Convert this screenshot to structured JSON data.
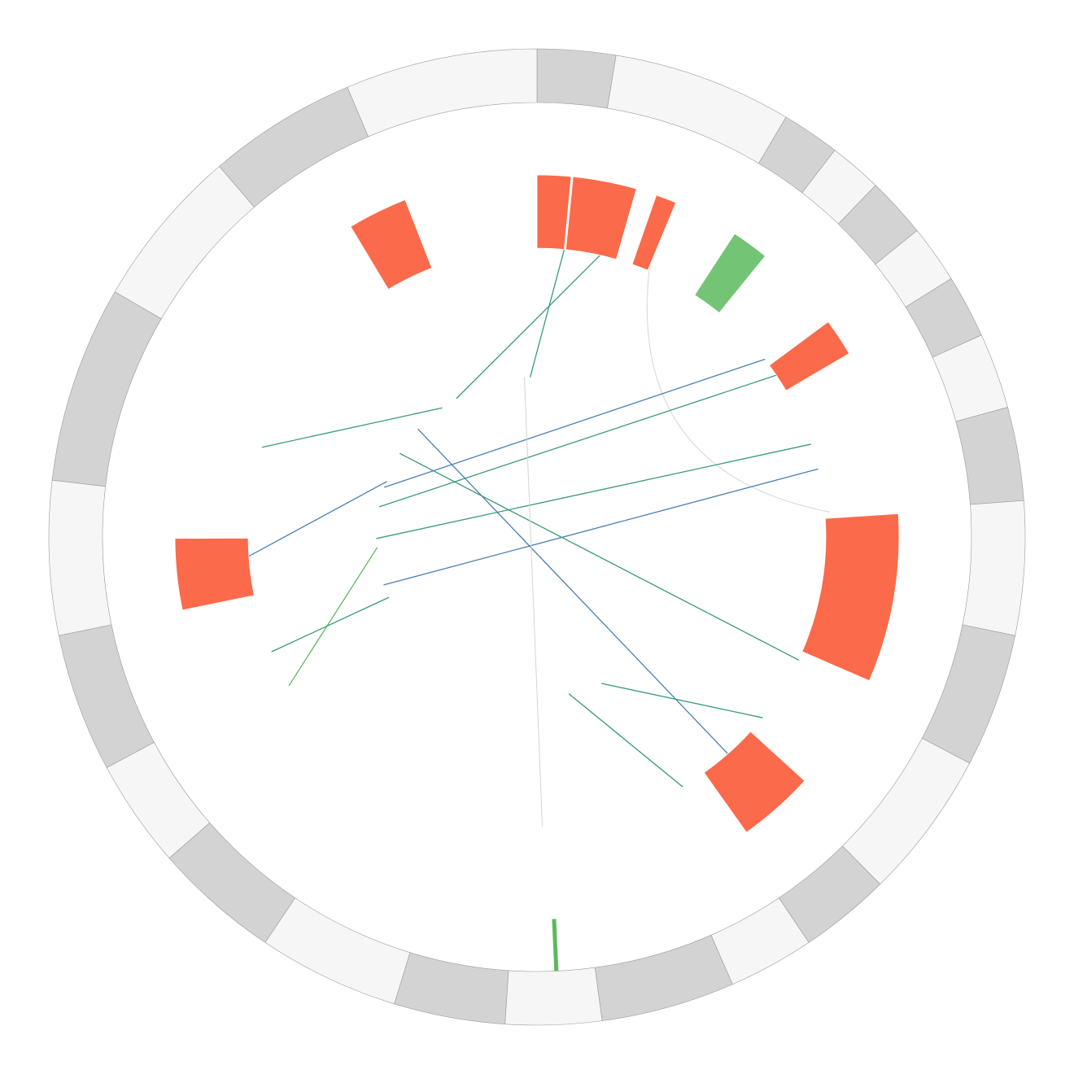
{
  "colors": {
    "segment_dark": "#d3d3d3",
    "segment_light": "#f6f6f6",
    "segment_stroke": "#9a9a9a",
    "highlight_red": "#fb6a4a",
    "highlight_green": "#74c476",
    "link_blue": "#4a7fb5",
    "link_teal": "#3a9a7a",
    "link_green": "#5bb95f",
    "link_light": "#cfd8cf",
    "arc_gray": "#dcdcdc"
  },
  "ideogram": {
    "segments": [
      {
        "start": 0,
        "end": 31,
        "tone": "dark"
      },
      {
        "start": 31,
        "end": 102,
        "tone": "light"
      },
      {
        "start": 102,
        "end": 125,
        "tone": "dark"
      },
      {
        "start": 125,
        "end": 146,
        "tone": "light"
      },
      {
        "start": 146,
        "end": 170,
        "tone": "dark"
      },
      {
        "start": 170,
        "end": 193,
        "tone": "light"
      },
      {
        "start": 193,
        "end": 218,
        "tone": "dark"
      },
      {
        "start": 218,
        "end": 248,
        "tone": "light"
      },
      {
        "start": 248,
        "end": 285,
        "tone": "dark"
      },
      {
        "start": 285,
        "end": 338,
        "tone": "light"
      },
      {
        "start": 338,
        "end": 391,
        "tone": "dark"
      },
      {
        "start": 391,
        "end": 450,
        "tone": "light"
      },
      {
        "start": 450,
        "end": 486,
        "tone": "dark"
      },
      {
        "start": 486,
        "end": 520,
        "tone": "light"
      },
      {
        "start": 520,
        "end": 573,
        "tone": "dark"
      },
      {
        "start": 573,
        "end": 611,
        "tone": "light"
      },
      {
        "start": 611,
        "end": 655,
        "tone": "dark"
      },
      {
        "start": 655,
        "end": 711,
        "tone": "light"
      },
      {
        "start": 711,
        "end": 761,
        "tone": "dark"
      },
      {
        "start": 761,
        "end": 804,
        "tone": "light"
      },
      {
        "start": 804,
        "end": 859,
        "tone": "dark"
      },
      {
        "start": 859,
        "end": 920,
        "tone": "light"
      },
      {
        "start": 920,
        "end": 998,
        "tone": "dark"
      },
      {
        "start": 998,
        "end": 1062,
        "tone": "light"
      },
      {
        "start": 1062,
        "end": 1121,
        "tone": "dark"
      },
      {
        "start": 1121,
        "end": 1197,
        "tone": "light"
      }
    ]
  },
  "highlights": [
    {
      "start": 0,
      "end": 18,
      "color": "red"
    },
    {
      "start": 19,
      "end": 53,
      "color": "red"
    },
    {
      "start": 64,
      "end": 75,
      "color": "red"
    },
    {
      "start": 110,
      "end": 130,
      "color": "green"
    },
    {
      "start": 178,
      "end": 198,
      "color": "red"
    },
    {
      "start": 287,
      "end": 377,
      "color": "red"
    },
    {
      "start": 440,
      "end": 481,
      "color": "red"
    },
    {
      "start": 859,
      "end": 897,
      "color": "red"
    },
    {
      "start": 1094,
      "end": 1126,
      "color": "red"
    }
  ],
  "links": [
    {
      "a": 18,
      "b": 1189,
      "color": "teal",
      "width": 1.3
    },
    {
      "a": 42,
      "b": 1097,
      "color": "teal",
      "width": 1.3
    },
    {
      "a": 173,
      "b": 958,
      "color": "blue",
      "width": 1.3
    },
    {
      "a": 186,
      "b": 934,
      "color": "teal",
      "width": 1.3
    },
    {
      "a": 237,
      "b": 896,
      "color": "teal",
      "width": 1.3
    },
    {
      "a": 254,
      "b": 840,
      "color": "blue",
      "width": 1.3
    },
    {
      "a": 383,
      "b": 1002,
      "color": "teal",
      "width": 1.3
    },
    {
      "a": 428,
      "b": 519,
      "color": "teal",
      "width": 1.3
    },
    {
      "a": 461,
      "b": 1038,
      "color": "blue",
      "width": 1.3
    },
    {
      "a": 498,
      "b": 560,
      "color": "teal",
      "width": 1.3
    },
    {
      "a": 498,
      "b": 560,
      "color": "teal",
      "width": 1.0
    },
    {
      "a": 595,
      "b": 1182,
      "color": "light",
      "width": 1.0
    },
    {
      "a": 795,
      "b": 885,
      "color": "green",
      "width": 1.3
    },
    {
      "a": 820,
      "b": 824,
      "color": "teal",
      "width": 1.3
    },
    {
      "a": 885,
      "b": 965,
      "color": "blue",
      "width": 1.3
    },
    {
      "a": 958,
      "b": 1076,
      "color": "teal",
      "width": 1.3
    }
  ],
  "markers": [
    {
      "pos": 590,
      "color": "green",
      "width": 5
    }
  ],
  "arcs": [
    {
      "start": 75,
      "end": 283,
      "color": "gray"
    }
  ]
}
